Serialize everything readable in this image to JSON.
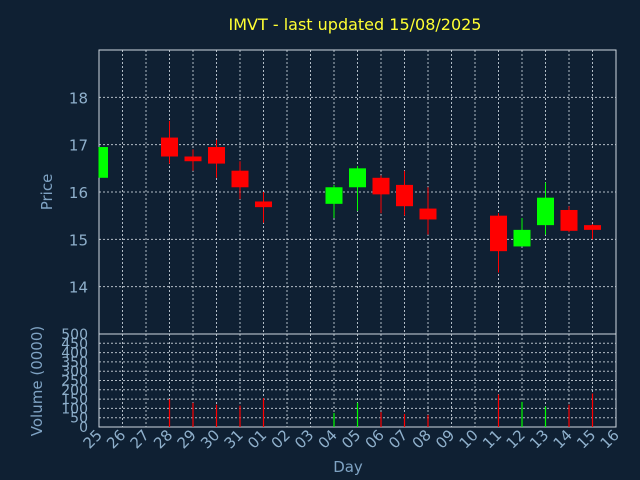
{
  "chart_data": [
    {
      "type": "candlestick",
      "title": "IMVT - last updated 15/08/2025",
      "ylabel": "Price",
      "ylim": [
        13.0,
        19.0
      ],
      "yticks": [
        "14",
        "15",
        "16",
        "17",
        "18"
      ],
      "grid": true,
      "up_color": "#00ff00",
      "down_color": "#ff0000",
      "candles": [
        {
          "day": "25",
          "open": 16.3,
          "close": 16.95,
          "high": 16.95,
          "low": 16.3
        },
        {
          "day": "28",
          "open": 17.15,
          "close": 16.75,
          "high": 17.5,
          "low": 16.6
        },
        {
          "day": "29",
          "open": 16.75,
          "close": 16.65,
          "high": 16.9,
          "low": 16.45
        },
        {
          "day": "30",
          "open": 16.95,
          "close": 16.6,
          "high": 17.1,
          "low": 16.3
        },
        {
          "day": "31",
          "open": 16.45,
          "close": 16.1,
          "high": 16.65,
          "low": 15.85
        },
        {
          "day": "01",
          "open": 15.8,
          "close": 15.68,
          "high": 16.0,
          "low": 15.35
        },
        {
          "day": "04",
          "open": 15.75,
          "close": 16.1,
          "high": 16.15,
          "low": 15.45
        },
        {
          "day": "05",
          "open": 16.1,
          "close": 16.5,
          "high": 16.55,
          "low": 15.6
        },
        {
          "day": "06",
          "open": 16.3,
          "close": 15.95,
          "high": 16.35,
          "low": 15.55
        },
        {
          "day": "07",
          "open": 16.15,
          "close": 15.7,
          "high": 16.45,
          "low": 15.5
        },
        {
          "day": "08",
          "open": 15.65,
          "close": 15.42,
          "high": 16.1,
          "low": 15.1
        },
        {
          "day": "11",
          "open": 15.5,
          "close": 14.75,
          "high": 15.55,
          "low": 14.3
        },
        {
          "day": "12",
          "open": 14.85,
          "close": 15.2,
          "high": 15.45,
          "low": 14.85
        },
        {
          "day": "13",
          "open": 15.3,
          "close": 15.88,
          "high": 16.2,
          "low": 15.1
        },
        {
          "day": "14",
          "open": 15.62,
          "close": 15.18,
          "high": 15.7,
          "low": 15.15
        },
        {
          "day": "15",
          "open": 15.3,
          "close": 15.2,
          "high": 15.32,
          "low": 15.0
        }
      ]
    },
    {
      "type": "bar",
      "ylabel": "Volume (0000)",
      "xlabel": "Day",
      "ylim": [
        0,
        500
      ],
      "yticks": [
        "0",
        "50",
        "100",
        "150",
        "200",
        "250",
        "300",
        "350",
        "400",
        "450",
        "500"
      ],
      "categories": [
        "25",
        "26",
        "27",
        "28",
        "29",
        "30",
        "31",
        "01",
        "02",
        "03",
        "04",
        "05",
        "06",
        "07",
        "08",
        "09",
        "10",
        "11",
        "12",
        "13",
        "14",
        "15",
        "16"
      ],
      "values": [
        0,
        0,
        0,
        150,
        130,
        120,
        115,
        155,
        0,
        0,
        75,
        130,
        80,
        70,
        65,
        0,
        0,
        175,
        135,
        110,
        120,
        180,
        0
      ],
      "colors": [
        "",
        "",
        "",
        "#ff0000",
        "#ff0000",
        "#ff0000",
        "#ff0000",
        "#ff0000",
        "",
        "",
        "#00ff00",
        "#00ff00",
        "#ff0000",
        "#ff0000",
        "#ff0000",
        "",
        "",
        "#ff0000",
        "#00ff00",
        "#00ff00",
        "#ff0000",
        "#ff0000",
        ""
      ]
    }
  ]
}
